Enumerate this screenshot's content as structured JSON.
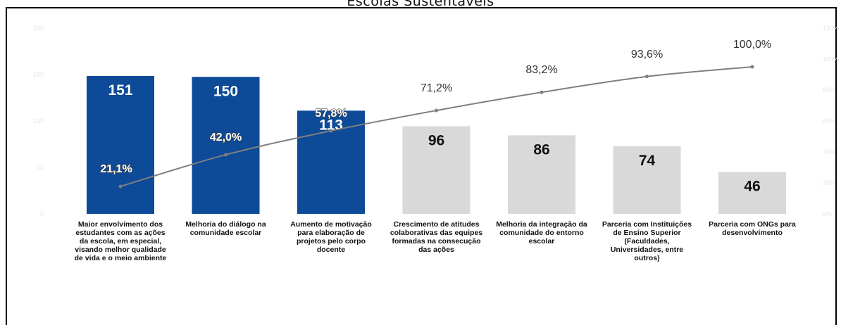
{
  "chart_data": {
    "type": "bar",
    "title": "Escolas Sustentáveis",
    "categories": [
      "Maior envolvimento dos estudantes com as ações da escola, em especial, visando melhor qualidade de vida e o meio ambiente",
      "Melhoria do diálogo na comunidade escolar",
      "Aumento de motivação para elaboração de projetos pelo corpo docente",
      "Crescimento de atitudes colaborativas das equipes formadas na consecução das ações",
      "Melhoria da integração da comunidade do entorno escolar",
      "Parceria com Instituições de Ensino Superior (Faculdades, Universidades, entre outros)",
      "Parceria com ONGs para desenvolvimento"
    ],
    "category_lines": [
      [
        "Maior envolvimento dos",
        "estudantes com as ações",
        "da escola, em especial,",
        "visando melhor qualidade",
        "de vida e o meio ambiente"
      ],
      [
        "Melhoria do diálogo na",
        "comunidade escolar"
      ],
      [
        "Aumento de motivação",
        "para elaboração de",
        "projetos pelo corpo",
        "docente"
      ],
      [
        "Crescimento de atitudes",
        "colaborativas das equipes",
        "formadas na consecução",
        "das ações"
      ],
      [
        "Melhoria da integração da",
        "comunidade do entorno",
        "escolar"
      ],
      [
        "Parceria com Instituições",
        "de Ensino Superior",
        "(Faculdades,",
        "Universidades, entre",
        "outros)"
      ],
      [
        "Parceria com ONGs para",
        "desenvolvimento"
      ]
    ],
    "series": [
      {
        "type": "bar",
        "values": [
          151,
          150,
          113,
          96,
          86,
          74,
          46
        ],
        "value_labels": [
          "151",
          "150",
          "113",
          "96",
          "86",
          "74",
          "46"
        ],
        "highlight": [
          true,
          true,
          true,
          false,
          false,
          false,
          false
        ]
      },
      {
        "type": "line",
        "axis": "secondary",
        "values": [
          21.1,
          42.0,
          57.8,
          71.2,
          83.2,
          93.6,
          100.0
        ],
        "value_labels": [
          "21,1%",
          "42,0%",
          "57,8%",
          "71,2%",
          "83,2%",
          "93,6%",
          "100,0%"
        ]
      }
    ],
    "ylim": [
      0,
      200
    ],
    "y2lim": [
      0,
      120
    ],
    "faint_left_ticks": [
      "0",
      "50",
      "100",
      "150",
      "200"
    ],
    "faint_right_ticks": [
      "0%",
      "20%",
      "40%",
      "60%",
      "80%",
      "100%",
      "120%"
    ],
    "grid": false,
    "colors": {
      "highlight_bar": "#0d4a97",
      "other_bar": "#d9d9d9",
      "line": "#7f7f7f",
      "highlight_value_text": "#ffffff",
      "other_value_text": "#111111"
    }
  }
}
